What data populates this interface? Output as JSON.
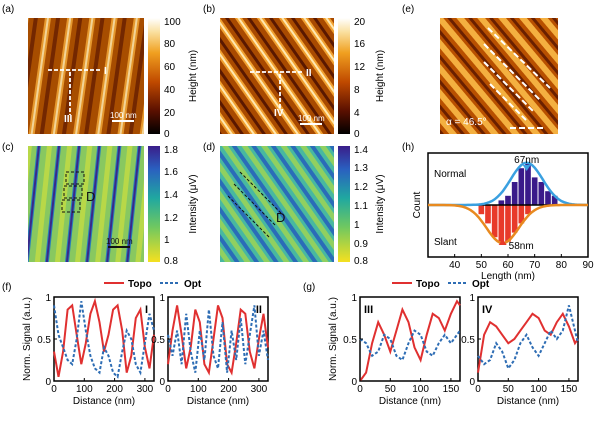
{
  "figure": {
    "panel_labels": {
      "a": "(a)",
      "b": "(b)",
      "c": "(c)",
      "d": "(d)",
      "e": "(e)",
      "f": "(f)",
      "g": "(g)",
      "h": "(h)"
    },
    "colorbar_a": {
      "label": "Height (nm)",
      "ticks": [
        "100",
        "80",
        "60",
        "40",
        "20",
        "0"
      ]
    },
    "colorbar_b": {
      "label": "Height (nm)",
      "ticks": [
        "20",
        "16",
        "12",
        "8",
        "4",
        "0"
      ]
    },
    "colorbar_c": {
      "label": "Intensity (μV)",
      "ticks": [
        "1.8",
        "1.6",
        "1.4",
        "1.2",
        "1",
        "0.8"
      ]
    },
    "colorbar_d": {
      "label": "Intensity (μV)",
      "ticks": [
        "1.4",
        "1.3",
        "1.2",
        "1.1",
        "1",
        "0.9",
        "0.8"
      ]
    },
    "scalebar_a": "100 nm",
    "scalebar_b": "100 nm",
    "scalebar_c": "100 nm",
    "line_marks": {
      "a_h": "I",
      "a_v": "III",
      "b_h": "II",
      "b_v": "IV"
    },
    "d_labels": {
      "c": "D",
      "d": "D"
    },
    "alpha_label": "α = 46.5°",
    "colors": {
      "topo": "#e03030",
      "opt": "#2e6db4",
      "normal_bar": "#3a1a8a",
      "slant_bar": "#e83a2a",
      "normal_fit": "#3aa0e0",
      "slant_fit": "#e88a20"
    }
  },
  "chart_data": [
    {
      "id": "h",
      "type": "bar",
      "xlabel": "Length (nm)",
      "ylabel": "Count",
      "xlim": [
        30,
        90
      ],
      "xticks": [
        "40",
        "50",
        "60",
        "70",
        "80",
        "90"
      ],
      "series_labels": {
        "normal": "Normal",
        "slant": "Slant"
      },
      "peak_labels": {
        "normal": "67nm",
        "slant": "58nm"
      },
      "normal": {
        "bins": [
          57.5,
          60,
          62.5,
          65,
          67.5,
          70,
          72.5,
          75,
          77.5
        ],
        "counts": [
          1,
          2,
          5,
          8,
          9,
          6,
          5,
          3,
          2
        ],
        "peak": 67
      },
      "slant": {
        "bins": [
          50,
          52.5,
          55,
          57.5,
          60,
          62.5,
          65,
          67.5
        ],
        "counts": [
          2,
          4,
          7,
          8,
          8,
          6,
          4,
          2
        ],
        "peak": 58
      }
    },
    {
      "id": "f1",
      "type": "line",
      "label": "I",
      "legend": [
        "Topo",
        "Opt"
      ],
      "xlabel": "Distance (nm)",
      "ylabel": "Norm. Signal (a.u.)",
      "xlim": [
        0,
        330
      ],
      "ylim": [
        0,
        1
      ],
      "xticks": [
        "0",
        "100",
        "200",
        "300"
      ],
      "yticks": [
        "0",
        "0.5",
        "1"
      ],
      "series": [
        {
          "name": "Topo",
          "x": [
            0,
            15,
            30,
            45,
            60,
            75,
            90,
            105,
            120,
            135,
            150,
            165,
            180,
            195,
            210,
            225,
            240,
            255,
            270,
            285,
            300,
            315,
            330
          ],
          "y": [
            0.35,
            0.05,
            0.35,
            0.85,
            0.9,
            0.55,
            0.2,
            0.45,
            0.8,
            0.95,
            0.7,
            0.35,
            0.55,
            0.85,
            0.9,
            0.6,
            0.1,
            0.3,
            0.75,
            0.85,
            0.4,
            0.15,
            0.55
          ]
        },
        {
          "name": "Opt",
          "x": [
            0,
            15,
            30,
            45,
            60,
            75,
            90,
            105,
            120,
            135,
            150,
            165,
            180,
            195,
            210,
            225,
            240,
            255,
            270,
            285,
            300,
            315,
            330
          ],
          "y": [
            0.9,
            0.55,
            0.4,
            0.25,
            0.2,
            0.5,
            0.95,
            0.6,
            0.3,
            0.15,
            0.1,
            0.4,
            0.3,
            0.1,
            0.05,
            0.35,
            0.6,
            0.5,
            0.2,
            0.1,
            0.45,
            0.8,
            0.6
          ]
        }
      ]
    },
    {
      "id": "f2",
      "type": "line",
      "label": "II",
      "legend": [
        "Topo",
        "Opt"
      ],
      "xlabel": "Distance (nm)",
      "ylabel": "",
      "xlim": [
        0,
        330
      ],
      "ylim": [
        0,
        1
      ],
      "xticks": [
        "0",
        "100",
        "200",
        "300"
      ],
      "yticks": [
        "0",
        "0.5",
        "1"
      ],
      "series": [
        {
          "name": "Topo",
          "x": [
            0,
            15,
            30,
            45,
            60,
            75,
            90,
            105,
            120,
            135,
            150,
            165,
            180,
            195,
            210,
            225,
            240,
            255,
            270,
            285,
            300,
            315,
            330
          ],
          "y": [
            0.2,
            0.6,
            0.9,
            0.55,
            0.15,
            0.4,
            0.85,
            0.7,
            0.2,
            0.1,
            0.5,
            0.9,
            0.75,
            0.2,
            0.1,
            0.45,
            0.85,
            0.8,
            0.35,
            0.15,
            0.5,
            0.8,
            0.4
          ]
        },
        {
          "name": "Opt",
          "x": [
            0,
            15,
            30,
            45,
            60,
            75,
            90,
            105,
            120,
            135,
            150,
            165,
            180,
            195,
            210,
            225,
            240,
            255,
            270,
            285,
            300,
            315,
            330
          ],
          "y": [
            0.55,
            0.3,
            0.6,
            0.2,
            0.8,
            0.35,
            0.1,
            0.6,
            0.25,
            0.85,
            0.3,
            0.15,
            0.7,
            0.1,
            0.6,
            0.25,
            0.75,
            0.2,
            0.55,
            0.9,
            0.3,
            0.6,
            0.25
          ]
        }
      ]
    },
    {
      "id": "g1",
      "type": "line",
      "label": "III",
      "legend": [
        "Topo",
        "Opt"
      ],
      "xlabel": "Distance (nm)",
      "ylabel": "Norm. Signal (a.u.)",
      "xlim": [
        0,
        165
      ],
      "ylim": [
        0,
        1
      ],
      "xticks": [
        "0",
        "50",
        "100",
        "150"
      ],
      "yticks": [
        "0",
        "0.5",
        "1"
      ],
      "series": [
        {
          "name": "Topo",
          "x": [
            0,
            10,
            20,
            30,
            40,
            50,
            60,
            70,
            80,
            90,
            100,
            110,
            120,
            130,
            140,
            150,
            160,
            165
          ],
          "y": [
            0.0,
            0.1,
            0.45,
            0.7,
            0.55,
            0.35,
            0.6,
            0.85,
            0.7,
            0.4,
            0.25,
            0.55,
            0.8,
            0.75,
            0.6,
            0.8,
            0.95,
            0.9
          ]
        },
        {
          "name": "Opt",
          "x": [
            0,
            10,
            20,
            30,
            40,
            50,
            60,
            70,
            80,
            90,
            100,
            110,
            120,
            130,
            140,
            150,
            160,
            165
          ],
          "y": [
            0.5,
            0.45,
            0.3,
            0.35,
            0.55,
            0.5,
            0.3,
            0.25,
            0.45,
            0.6,
            0.55,
            0.35,
            0.3,
            0.45,
            0.55,
            0.45,
            0.55,
            0.6
          ]
        }
      ]
    },
    {
      "id": "g2",
      "type": "line",
      "label": "IV",
      "legend": [
        "Topo",
        "Opt"
      ],
      "xlabel": "Distance (nm)",
      "ylabel": "",
      "xlim": [
        0,
        165
      ],
      "ylim": [
        0,
        1
      ],
      "xticks": [
        "0",
        "50",
        "100",
        "150"
      ],
      "yticks": [
        "0",
        "0.5",
        "1"
      ],
      "series": [
        {
          "name": "Topo",
          "x": [
            0,
            10,
            20,
            30,
            40,
            50,
            60,
            70,
            80,
            90,
            100,
            110,
            120,
            130,
            140,
            150,
            160,
            165
          ],
          "y": [
            0.1,
            0.55,
            0.7,
            0.65,
            0.55,
            0.45,
            0.5,
            0.6,
            0.7,
            0.8,
            0.75,
            0.6,
            0.55,
            0.7,
            0.8,
            0.65,
            0.45,
            0.5
          ]
        },
        {
          "name": "Opt",
          "x": [
            0,
            10,
            20,
            30,
            40,
            50,
            60,
            70,
            80,
            90,
            100,
            110,
            120,
            130,
            140,
            150,
            160,
            165
          ],
          "y": [
            0.3,
            0.2,
            0.25,
            0.45,
            0.35,
            0.15,
            0.25,
            0.45,
            0.55,
            0.4,
            0.3,
            0.45,
            0.6,
            0.5,
            0.6,
            0.9,
            0.6,
            0.45
          ]
        }
      ]
    }
  ]
}
